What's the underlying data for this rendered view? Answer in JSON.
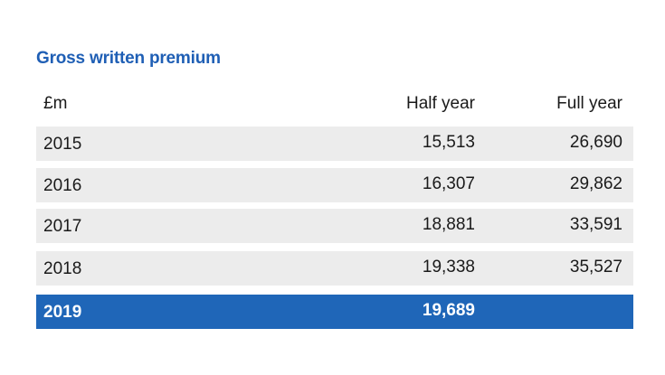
{
  "title": "Gross written premium",
  "columns": [
    "£m",
    "Half year",
    "Full year"
  ],
  "rows": [
    {
      "year": "2015",
      "half_year": "15,513",
      "full_year": "26,690"
    },
    {
      "year": "2016",
      "half_year": "16,307",
      "full_year": "29,862"
    },
    {
      "year": "2017",
      "half_year": "18,881",
      "full_year": "33,591"
    },
    {
      "year": "2018",
      "half_year": "19,338",
      "full_year": "35,527"
    },
    {
      "year": "2019",
      "half_year": "19,689",
      "full_year": ""
    }
  ],
  "colors": {
    "title": "#1f5fb5",
    "row_background": "#ececec",
    "highlight_background": "#1f66b8",
    "highlight_text": "#ffffff"
  },
  "chart_data": {
    "type": "table",
    "title": "Gross written premium",
    "columns": [
      "£m",
      "Half year",
      "Full year"
    ],
    "rows": [
      [
        "2015",
        15513,
        26690
      ],
      [
        "2016",
        16307,
        29862
      ],
      [
        "2017",
        18881,
        33591
      ],
      [
        "2018",
        19338,
        35527
      ],
      [
        "2019",
        19689,
        null
      ]
    ],
    "highlighted_row": "2019"
  }
}
